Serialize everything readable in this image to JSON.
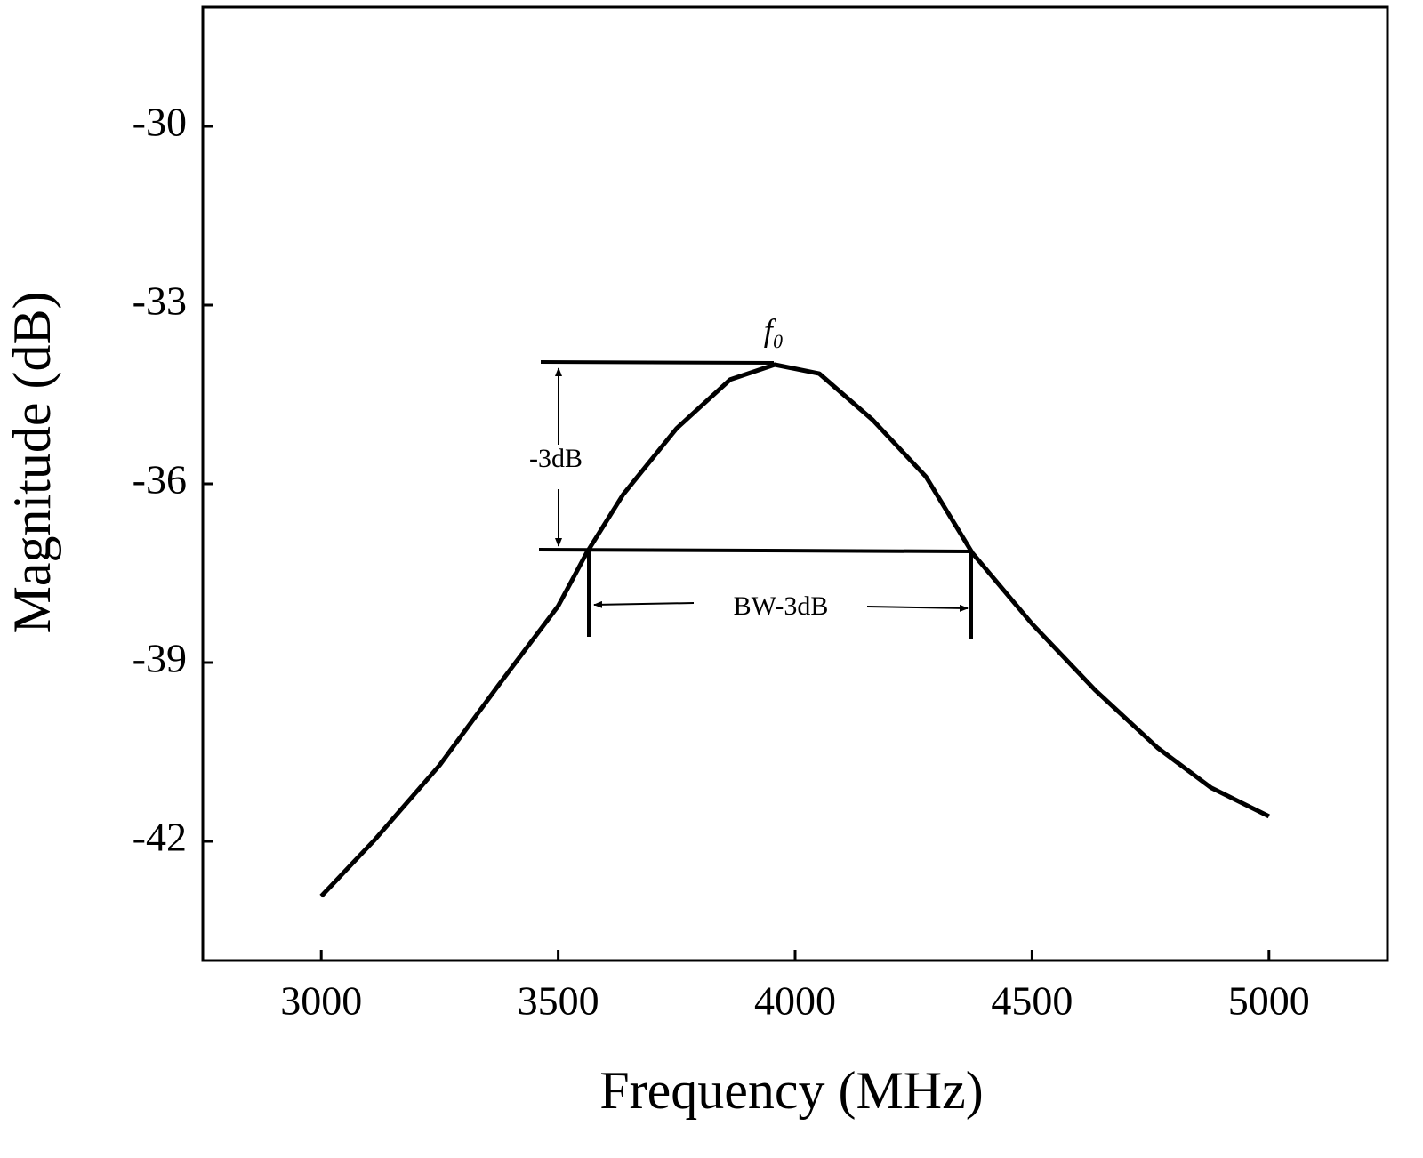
{
  "chart_data": {
    "type": "line",
    "x_label": "Frequency (MHz)",
    "y_label": "Magnitude (dB)",
    "x": [
      3000,
      3111,
      3250,
      3374,
      3500,
      3560,
      3637,
      3750,
      3863,
      3957,
      4051,
      4164,
      4276,
      4374,
      4500,
      4633,
      4765,
      4878,
      5000
    ],
    "series": [
      {
        "color": "#000000",
        "values": [
          -42.92,
          -41.99,
          -40.72,
          -39.38,
          -38.05,
          -37.16,
          -36.18,
          -35.07,
          -34.25,
          -34.0,
          -34.15,
          -34.93,
          -35.88,
          -37.16,
          -38.35,
          -39.46,
          -40.43,
          -41.1,
          -41.58
        ]
      }
    ],
    "xlim": [
      2750,
      5250
    ],
    "xticks": [
      3000,
      3500,
      4000,
      4500,
      5000
    ],
    "ylim": [
      -44,
      -28
    ],
    "yticks": [
      -30,
      -33,
      -36,
      -39,
      -42
    ],
    "annotations": [
      "f₀",
      "-3dB",
      "BW-3dB"
    ]
  }
}
